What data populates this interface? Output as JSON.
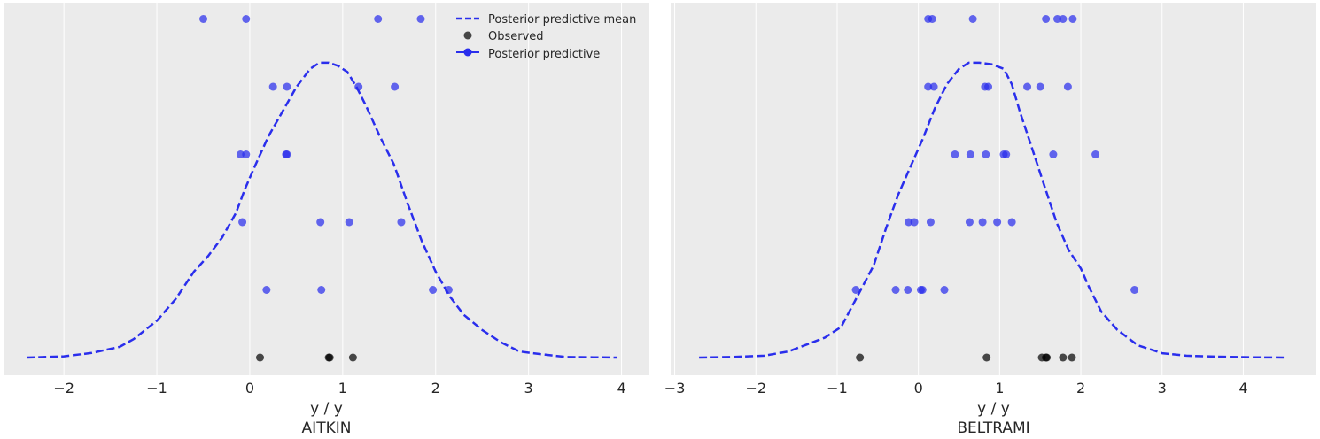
{
  "colors": {
    "panel_bg": "#ebebeb",
    "grid": "#ffffff",
    "predictive": "#2a2eec",
    "observed": "#000000"
  },
  "legend": {
    "items": [
      {
        "label": "Posterior predictive mean",
        "marker": "dashed-line"
      },
      {
        "label": "Observed",
        "marker": "dot"
      },
      {
        "label": "Posterior predictive",
        "marker": "line-dot"
      }
    ]
  },
  "chart_data": [
    {
      "type": "scatter",
      "title": "AITKIN",
      "xlabel": "y / y",
      "xlim": [
        -2.65,
        4.3
      ],
      "xticks": [
        -2,
        -1,
        0,
        1,
        2,
        3,
        4
      ],
      "xtick_labels": [
        "−2",
        "−1",
        "0",
        "1",
        "2",
        "3",
        "4"
      ],
      "grid": true,
      "legend_position": "top-right",
      "series": [
        {
          "name": "Posterior predictive mean",
          "style": "dashed-line",
          "x": [
            -2.4,
            -2.0,
            -1.7,
            -1.4,
            -1.25,
            -1.0,
            -0.8,
            -0.6,
            -0.45,
            -0.3,
            -0.15,
            -0.05,
            0.05,
            0.2,
            0.35,
            0.5,
            0.65,
            0.75,
            0.85,
            0.95,
            1.05,
            1.15,
            1.25,
            1.4,
            1.55,
            1.7,
            1.85,
            2.0,
            2.15,
            2.3,
            2.5,
            2.7,
            2.9,
            3.1,
            3.4,
            3.7,
            3.95
          ],
          "y": [
            0.0,
            0.004,
            0.015,
            0.035,
            0.06,
            0.12,
            0.19,
            0.28,
            0.33,
            0.39,
            0.47,
            0.55,
            0.62,
            0.72,
            0.8,
            0.88,
            0.94,
            0.96,
            0.96,
            0.95,
            0.93,
            0.88,
            0.82,
            0.72,
            0.63,
            0.5,
            0.38,
            0.28,
            0.2,
            0.14,
            0.09,
            0.05,
            0.02,
            0.012,
            0.002,
            0.001,
            0.0
          ]
        },
        {
          "name": "Posterior predictive",
          "style": "dot",
          "points": [
            [
              -0.5,
              5
            ],
            [
              -0.04,
              5
            ],
            [
              1.38,
              5
            ],
            [
              1.84,
              5
            ],
            [
              0.25,
              4
            ],
            [
              0.4,
              4
            ],
            [
              1.17,
              4
            ],
            [
              1.56,
              4
            ],
            [
              -0.1,
              3
            ],
            [
              -0.04,
              3
            ],
            [
              0.39,
              3
            ],
            [
              0.4,
              3
            ],
            [
              -0.08,
              2
            ],
            [
              0.76,
              2
            ],
            [
              1.07,
              2
            ],
            [
              1.63,
              2
            ],
            [
              0.18,
              1
            ],
            [
              0.77,
              1
            ],
            [
              1.97,
              1
            ],
            [
              2.14,
              1
            ]
          ]
        },
        {
          "name": "Observed",
          "style": "dot",
          "points": [
            [
              0.11,
              0
            ],
            [
              0.85,
              0
            ],
            [
              0.86,
              0
            ],
            [
              1.11,
              0
            ]
          ]
        }
      ]
    },
    {
      "type": "scatter",
      "title": "BELTRAMI",
      "xlabel": "y / y",
      "xlim": [
        -3.05,
        4.9
      ],
      "xticks": [
        -3,
        -2,
        -1,
        0,
        1,
        2,
        3,
        4
      ],
      "xtick_labels": [
        "−3",
        "−2",
        "−1",
        "0",
        "1",
        "2",
        "3",
        "4"
      ],
      "grid": true,
      "series": [
        {
          "name": "Posterior predictive mean",
          "style": "dashed-line",
          "x": [
            -2.7,
            -2.3,
            -1.9,
            -1.6,
            -1.35,
            -1.15,
            -0.95,
            -0.75,
            -0.55,
            -0.4,
            -0.25,
            -0.1,
            0.05,
            0.2,
            0.35,
            0.5,
            0.62,
            0.75,
            0.9,
            1.05,
            1.15,
            1.25,
            1.4,
            1.55,
            1.7,
            1.85,
            2.0,
            2.1,
            2.25,
            2.45,
            2.7,
            3.0,
            3.3,
            3.7,
            4.1,
            4.5
          ],
          "y": [
            0.0,
            0.002,
            0.006,
            0.02,
            0.045,
            0.065,
            0.1,
            0.2,
            0.3,
            0.42,
            0.53,
            0.62,
            0.71,
            0.81,
            0.89,
            0.94,
            0.96,
            0.96,
            0.955,
            0.94,
            0.89,
            0.8,
            0.68,
            0.56,
            0.44,
            0.35,
            0.29,
            0.23,
            0.15,
            0.09,
            0.04,
            0.014,
            0.006,
            0.003,
            0.001,
            0.0
          ]
        },
        {
          "name": "Posterior predictive",
          "style": "dot",
          "points": [
            [
              0.12,
              5
            ],
            [
              0.17,
              5
            ],
            [
              0.67,
              5
            ],
            [
              1.57,
              5
            ],
            [
              1.71,
              5
            ],
            [
              1.78,
              5
            ],
            [
              1.9,
              5
            ],
            [
              0.12,
              4
            ],
            [
              0.19,
              4
            ],
            [
              0.82,
              4
            ],
            [
              0.86,
              4
            ],
            [
              1.34,
              4
            ],
            [
              1.5,
              4
            ],
            [
              1.84,
              4
            ],
            [
              0.45,
              3
            ],
            [
              0.64,
              3
            ],
            [
              0.83,
              3
            ],
            [
              1.05,
              3
            ],
            [
              1.08,
              3
            ],
            [
              1.66,
              3
            ],
            [
              2.18,
              3
            ],
            [
              -0.12,
              2
            ],
            [
              -0.05,
              2
            ],
            [
              0.15,
              2
            ],
            [
              0.63,
              2
            ],
            [
              0.79,
              2
            ],
            [
              0.97,
              2
            ],
            [
              1.15,
              2
            ],
            [
              -0.77,
              1
            ],
            [
              -0.28,
              1
            ],
            [
              -0.13,
              1
            ],
            [
              0.03,
              1
            ],
            [
              0.05,
              1
            ],
            [
              0.32,
              1
            ],
            [
              2.66,
              1
            ]
          ]
        },
        {
          "name": "Observed",
          "style": "dot",
          "points": [
            [
              -0.72,
              0
            ],
            [
              0.84,
              0
            ],
            [
              1.52,
              0
            ],
            [
              1.57,
              0
            ],
            [
              1.58,
              0
            ],
            [
              1.78,
              0
            ],
            [
              1.89,
              0
            ]
          ]
        }
      ]
    }
  ]
}
